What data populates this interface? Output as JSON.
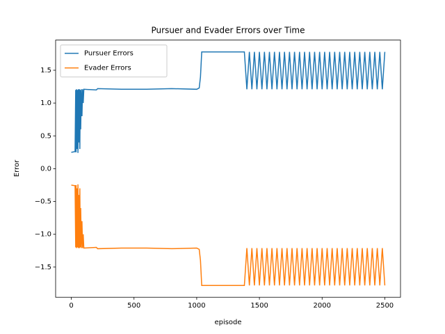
{
  "chart_data": {
    "type": "line",
    "title": "Pursuer and Evader Errors over Time",
    "x_label": "episode",
    "y_label": "Error",
    "x": [
      0,
      30,
      35,
      38,
      42,
      45,
      50,
      53,
      57,
      60,
      65,
      68,
      72,
      75,
      80,
      85,
      90,
      95,
      100,
      200,
      210,
      400,
      600,
      800,
      1000,
      1020,
      1030,
      1040,
      1380,
      1400,
      1420,
      1440,
      1460,
      1480,
      1500,
      1520,
      1540,
      1560,
      1580,
      1600,
      1620,
      1640,
      1660,
      1680,
      1700,
      1720,
      1740,
      1760,
      1780,
      1800,
      1820,
      1840,
      1860,
      1880,
      1900,
      1920,
      1940,
      1960,
      1980,
      2000,
      2020,
      2040,
      2060,
      2080,
      2100,
      2120,
      2140,
      2160,
      2180,
      2200,
      2220,
      2240,
      2260,
      2280,
      2300,
      2320,
      2340,
      2360,
      2380,
      2400,
      2420,
      2440,
      2460,
      2480,
      2500
    ],
    "series": [
      {
        "name": "Pursuer Errors",
        "color": "#1f77b4",
        "values": [
          0.25,
          0.26,
          1.2,
          0.25,
          1.21,
          0.3,
          1.2,
          0.24,
          1.21,
          0.4,
          1.21,
          0.3,
          1.2,
          0.6,
          1.21,
          0.8,
          1.21,
          1.0,
          1.21,
          1.2,
          1.22,
          1.21,
          1.21,
          1.22,
          1.21,
          1.23,
          1.4,
          1.78,
          1.78,
          1.21,
          1.78,
          1.21,
          1.78,
          1.21,
          1.78,
          1.21,
          1.78,
          1.21,
          1.78,
          1.21,
          1.78,
          1.21,
          1.78,
          1.21,
          1.78,
          1.21,
          1.78,
          1.21,
          1.78,
          1.21,
          1.78,
          1.21,
          1.78,
          1.21,
          1.78,
          1.21,
          1.78,
          1.21,
          1.78,
          1.21,
          1.78,
          1.21,
          1.78,
          1.21,
          1.78,
          1.21,
          1.78,
          1.21,
          1.78,
          1.21,
          1.78,
          1.21,
          1.78,
          1.21,
          1.78,
          1.21,
          1.78,
          1.21,
          1.78,
          1.21,
          1.78,
          1.21,
          1.78,
          1.21,
          1.78
        ]
      },
      {
        "name": "Evader Errors",
        "color": "#ff7f0e",
        "values": [
          -0.25,
          -0.26,
          -1.2,
          -0.25,
          -1.21,
          -0.3,
          -1.2,
          -0.24,
          -1.21,
          -0.4,
          -1.21,
          -0.3,
          -1.2,
          -0.6,
          -1.21,
          -0.8,
          -1.21,
          -1.0,
          -1.21,
          -1.2,
          -1.22,
          -1.21,
          -1.21,
          -1.22,
          -1.21,
          -1.23,
          -1.4,
          -1.78,
          -1.78,
          -1.21,
          -1.78,
          -1.21,
          -1.78,
          -1.21,
          -1.78,
          -1.21,
          -1.78,
          -1.21,
          -1.78,
          -1.21,
          -1.78,
          -1.21,
          -1.78,
          -1.21,
          -1.78,
          -1.21,
          -1.78,
          -1.21,
          -1.78,
          -1.21,
          -1.78,
          -1.21,
          -1.78,
          -1.21,
          -1.78,
          -1.21,
          -1.78,
          -1.21,
          -1.78,
          -1.21,
          -1.78,
          -1.21,
          -1.78,
          -1.21,
          -1.78,
          -1.21,
          -1.78,
          -1.21,
          -1.78,
          -1.21,
          -1.78,
          -1.21,
          -1.78,
          -1.21,
          -1.78,
          -1.21,
          -1.78,
          -1.21,
          -1.78,
          -1.21,
          -1.78,
          -1.21,
          -1.78,
          -1.21,
          -1.78
        ]
      }
    ],
    "xlim": [
      -125,
      2625
    ],
    "ylim": [
      -1.96,
      1.96
    ],
    "xticks": [
      0,
      500,
      1000,
      1500,
      2000,
      2500
    ],
    "yticks": [
      {
        "value": -1.5,
        "label": "−1.5"
      },
      {
        "value": -1.0,
        "label": "−1.0"
      },
      {
        "value": -0.5,
        "label": "−0.5"
      },
      {
        "value": 0,
        "label": "0.0"
      },
      0.5,
      {
        "value": 1,
        "label": "1.0"
      },
      1.5
    ],
    "legend": "upper left",
    "grid": false
  }
}
